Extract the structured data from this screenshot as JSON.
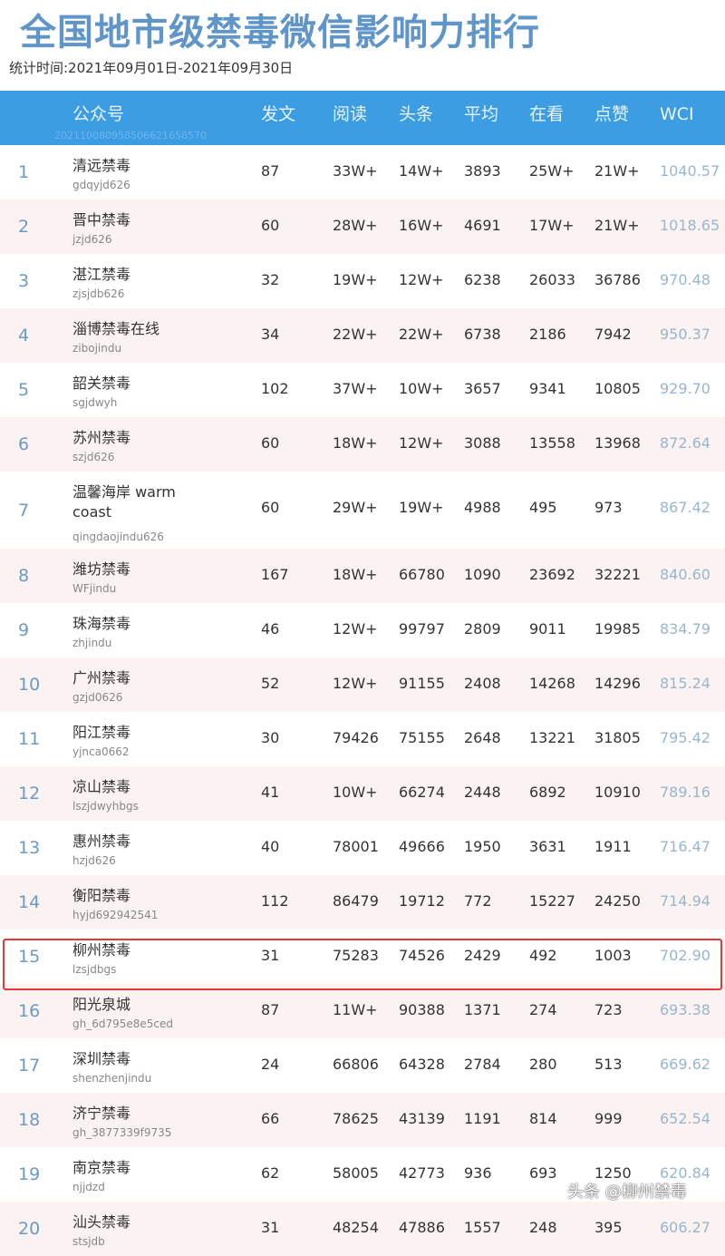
{
  "title": "全国地市级禁毒微信影响力排行",
  "subtitle": "统计时间:2021年09月01日-2021年09月30日",
  "header": {
    "columns": [
      "公众号",
      "发文",
      "阅读",
      "头条",
      "平均",
      "在看",
      "点赞",
      "WCI"
    ],
    "watermark": "20211008095850662165857​0"
  },
  "rows": [
    [
      "1",
      "清远禁毒",
      "gdqyjd626",
      "87",
      "33W+",
      "14W+",
      "3893",
      "25W+",
      "21W+",
      "1040.57"
    ],
    [
      "2",
      "晋中禁毒",
      "jzjd626",
      "60",
      "28W+",
      "16W+",
      "4691",
      "17W+",
      "21W+",
      "1018.65"
    ],
    [
      "3",
      "湛江禁毒",
      "zjsjdb626",
      "32",
      "19W+",
      "12W+",
      "6238",
      "26033",
      "36786",
      "970.48"
    ],
    [
      "4",
      "淄博禁毒在线",
      "zibojindu",
      "34",
      "22W+",
      "22W+",
      "6738",
      "2186",
      "7942",
      "950.37"
    ],
    [
      "5",
      "韶关禁毒",
      "sgjdwyh",
      "102",
      "37W+",
      "10W+",
      "3657",
      "9341",
      "10805",
      "929.70"
    ],
    [
      "6",
      "苏州禁毒",
      "szjd626",
      "60",
      "18W+",
      "12W+",
      "3088",
      "13558",
      "13968",
      "872.64"
    ],
    [
      "7",
      "温馨海岸 warm coast",
      "qingdaojindu626",
      "60",
      "29W+",
      "19W+",
      "4988",
      "495",
      "973",
      "867.42"
    ],
    [
      "8",
      "潍坊禁毒",
      "WFjindu",
      "167",
      "18W+",
      "66780",
      "1090",
      "23692",
      "32221",
      "840.60"
    ],
    [
      "9",
      "珠海禁毒",
      "zhjindu",
      "46",
      "12W+",
      "99797",
      "2809",
      "9011",
      "19985",
      "834.79"
    ],
    [
      "10",
      "广州禁毒",
      "gzjd0626",
      "52",
      "12W+",
      "91155",
      "2408",
      "14268",
      "14296",
      "815.24"
    ],
    [
      "11",
      "阳江禁毒",
      "yjnca0662",
      "30",
      "79426",
      "75155",
      "2648",
      "13221",
      "31805",
      "795.42"
    ],
    [
      "12",
      "凉山禁毒",
      "lszjdwyhbgs",
      "41",
      "10W+",
      "66274",
      "2448",
      "6892",
      "10910",
      "789.16"
    ],
    [
      "13",
      "惠州禁毒",
      "hzjd626",
      "40",
      "78001",
      "49666",
      "1950",
      "3631",
      "1911",
      "716.47"
    ],
    [
      "14",
      "衡阳禁毒",
      "hyjd692942541",
      "112",
      "86479",
      "19712",
      "772",
      "15227",
      "24250",
      "714.94"
    ],
    [
      "15",
      "柳州禁毒",
      "lzsjdbgs",
      "31",
      "75283",
      "74526",
      "2429",
      "492",
      "1003",
      "702.90"
    ],
    [
      "16",
      "阳光泉城",
      "gh_6d795e8e5ced",
      "87",
      "11W+",
      "90388",
      "1371",
      "274",
      "723",
      "693.38"
    ],
    [
      "17",
      "深圳禁毒",
      "shenzhenjindu",
      "24",
      "66806",
      "64328",
      "2784",
      "280",
      "513",
      "669.62"
    ],
    [
      "18",
      "济宁禁毒",
      "gh_3877339f9735",
      "66",
      "78625",
      "43139",
      "1191",
      "814",
      "999",
      "652.54"
    ],
    [
      "19",
      "南京禁毒",
      "njjdzd",
      "62",
      "58005",
      "42773",
      "936",
      "693",
      "1250",
      "620.84"
    ],
    [
      "20",
      "汕头禁毒",
      "stsjdb",
      "31",
      "48254",
      "47886",
      "1557",
      "248",
      "395",
      "606.27"
    ]
  ],
  "highlighted_rank": "15",
  "watermark": "头条 @柳州禁毒",
  "colors": {
    "header": "#3d9de3",
    "title": "#5f95c8",
    "highlight": "#e53935"
  }
}
